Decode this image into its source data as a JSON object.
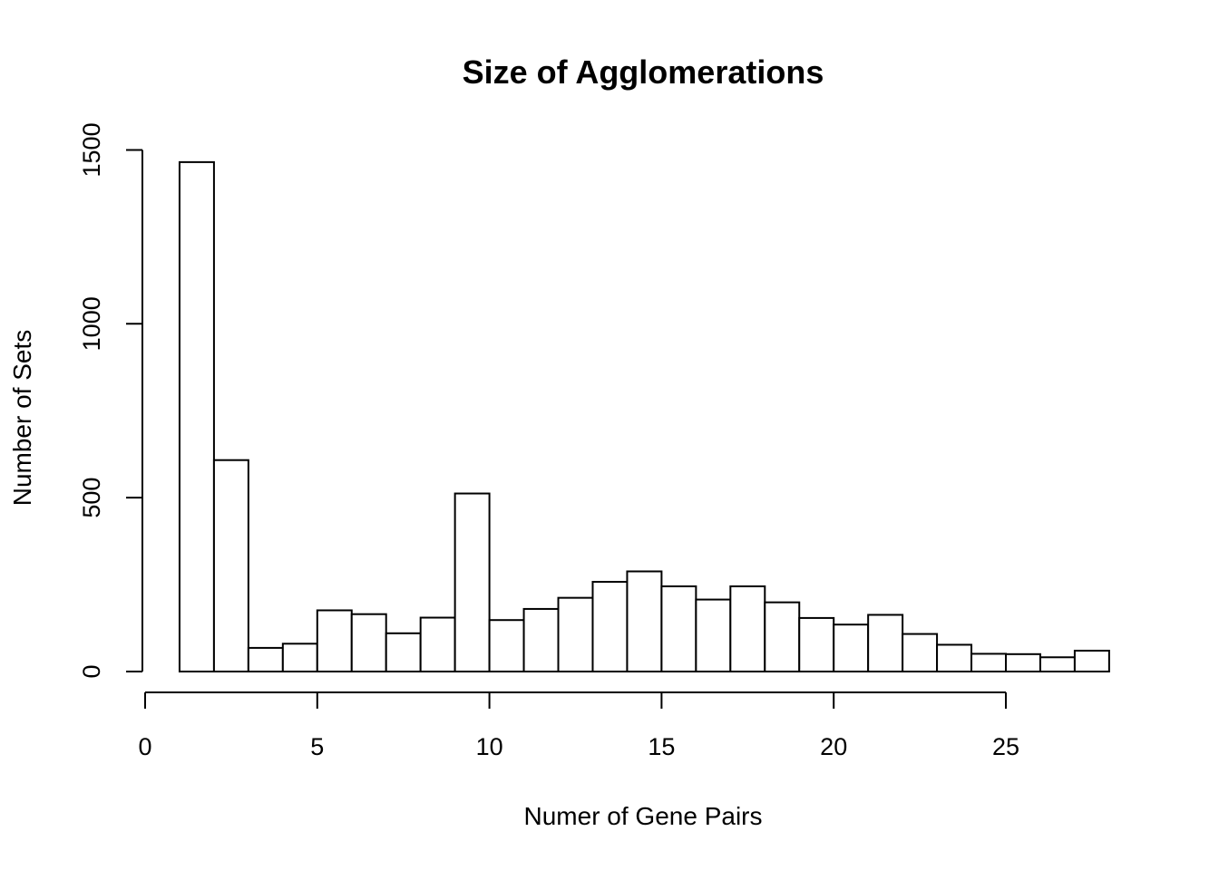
{
  "chart_data": {
    "type": "bar",
    "title": "Size of Agglomerations",
    "xlabel": "Numer of Gene Pairs",
    "ylabel": "Number of Sets",
    "bin_edges": [
      1,
      2,
      3,
      4,
      5,
      6,
      7,
      8,
      9,
      10,
      11,
      12,
      13,
      14,
      15,
      16,
      17,
      18,
      19,
      20,
      21,
      22,
      23,
      24,
      25,
      26,
      27,
      28
    ],
    "values": [
      1465,
      608,
      68,
      80,
      176,
      165,
      110,
      155,
      512,
      148,
      180,
      212,
      258,
      288,
      245,
      207,
      245,
      199,
      154,
      135,
      163,
      108,
      77,
      51,
      50,
      41,
      60
    ],
    "xlim": [
      0,
      28
    ],
    "ylim": [
      0,
      1500
    ],
    "x_ticks": [
      0,
      5,
      10,
      15,
      20,
      25
    ],
    "y_ticks": [
      0,
      500,
      1000,
      1500
    ],
    "grid": false,
    "colors": {
      "bar_fill": "#ffffff",
      "bar_stroke": "#000000",
      "axis": "#000000"
    }
  }
}
